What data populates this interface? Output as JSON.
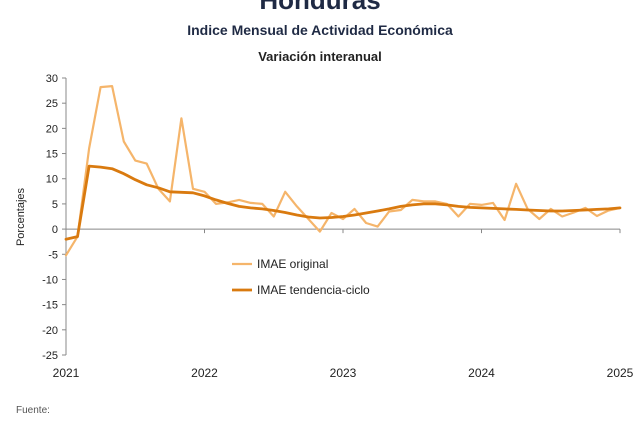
{
  "header": {
    "title": "Honduras",
    "subtitle": "Indice Mensual de  Actividad Económica",
    "subsubtitle": "Variación interanual"
  },
  "footer": {
    "source_label": "Fuente:"
  },
  "colors": {
    "original": "#f5b56b",
    "trend": "#d97a0f",
    "axis": "#888888"
  },
  "chart_data": {
    "type": "line",
    "title": "Indice Mensual de  Actividad Económica",
    "subtitle": "Variación interanual",
    "ylabel": "Porcentajes",
    "xlabel": "",
    "ylim": [
      -25,
      30
    ],
    "yticks": [
      30,
      25,
      20,
      15,
      10,
      5,
      0,
      -5,
      -10,
      -15,
      -20,
      -25
    ],
    "xlim": [
      2021,
      2025
    ],
    "xticks": [
      "2021",
      "2022",
      "2023",
      "2024",
      "2025"
    ],
    "grid": false,
    "legend_position": "center",
    "series": [
      {
        "name": "IMAE original",
        "color": "#f5b56b",
        "x": [
          2021.0,
          2021.083,
          2021.167,
          2021.25,
          2021.333,
          2021.417,
          2021.5,
          2021.583,
          2021.667,
          2021.75,
          2021.833,
          2021.917,
          2022.0,
          2022.083,
          2022.167,
          2022.25,
          2022.333,
          2022.417,
          2022.5,
          2022.583,
          2022.667,
          2022.75,
          2022.833,
          2022.917,
          2023.0,
          2023.083,
          2023.167,
          2023.25,
          2023.333,
          2023.417,
          2023.5,
          2023.583,
          2023.667,
          2023.75,
          2023.833,
          2023.917,
          2024.0,
          2024.083,
          2024.167,
          2024.25,
          2024.333,
          2024.417,
          2024.5,
          2024.583,
          2024.667,
          2024.75,
          2024.833,
          2024.917,
          2025.0
        ],
        "values": [
          -5.2,
          -1.5,
          16.0,
          28.2,
          28.4,
          17.4,
          13.6,
          13.0,
          8.0,
          5.5,
          22.0,
          8.0,
          7.4,
          5.0,
          5.3,
          5.8,
          5.2,
          5.0,
          2.5,
          7.4,
          4.5,
          2.0,
          -0.5,
          3.2,
          2.0,
          4.0,
          1.2,
          0.5,
          3.5,
          3.8,
          5.8,
          5.5,
          5.5,
          5.0,
          2.5,
          5.0,
          4.8,
          5.2,
          1.8,
          9.0,
          4.0,
          2.0,
          4.0,
          2.5,
          3.3,
          4.2,
          2.6,
          3.7,
          4.2
        ]
      },
      {
        "name": "IMAE tendencia-ciclo",
        "color": "#d97a0f",
        "x": [
          2021.0,
          2021.083,
          2021.167,
          2021.25,
          2021.333,
          2021.417,
          2021.5,
          2021.583,
          2021.667,
          2021.75,
          2021.833,
          2021.917,
          2022.0,
          2022.083,
          2022.167,
          2022.25,
          2022.333,
          2022.417,
          2022.5,
          2022.583,
          2022.667,
          2022.75,
          2022.833,
          2022.917,
          2023.0,
          2023.083,
          2023.167,
          2023.25,
          2023.333,
          2023.417,
          2023.5,
          2023.583,
          2023.667,
          2023.75,
          2023.833,
          2023.917,
          2024.0,
          2024.083,
          2024.167,
          2024.25,
          2024.333,
          2024.417,
          2024.5,
          2024.583,
          2024.667,
          2024.75,
          2024.833,
          2024.917,
          2025.0
        ],
        "values": [
          -2.0,
          -1.5,
          12.5,
          12.3,
          12.0,
          11.0,
          9.8,
          8.8,
          8.2,
          7.4,
          7.3,
          7.2,
          6.6,
          5.8,
          5.1,
          4.5,
          4.2,
          4.0,
          3.7,
          3.3,
          2.8,
          2.4,
          2.2,
          2.3,
          2.5,
          2.8,
          3.2,
          3.6,
          4.0,
          4.5,
          4.8,
          5.0,
          5.0,
          4.8,
          4.5,
          4.3,
          4.2,
          4.1,
          4.0,
          3.9,
          3.8,
          3.7,
          3.6,
          3.6,
          3.7,
          3.8,
          3.9,
          4.0,
          4.2
        ]
      }
    ]
  }
}
